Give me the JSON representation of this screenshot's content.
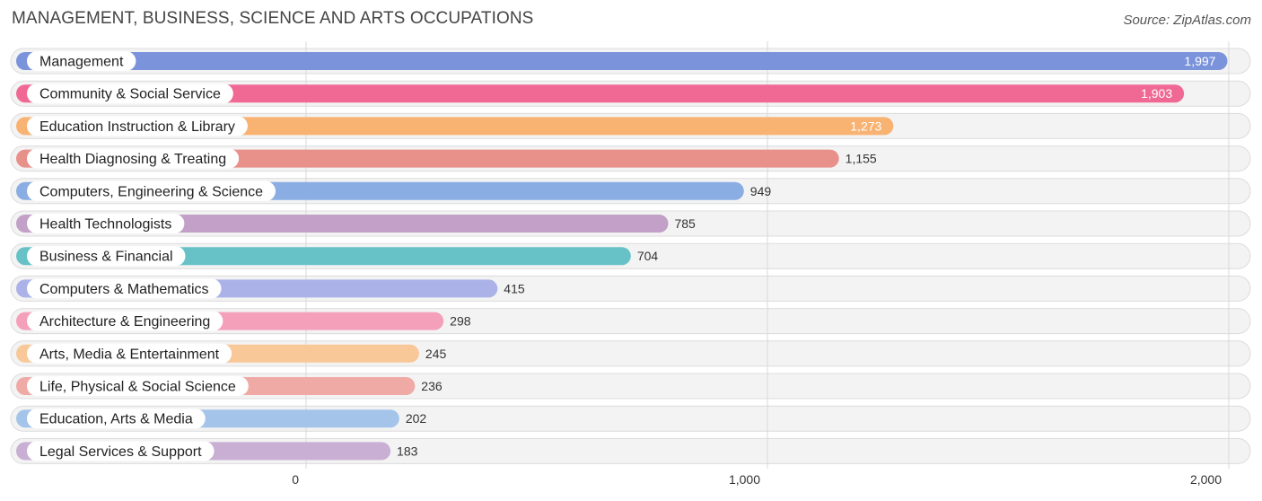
{
  "header": {
    "title": "MANAGEMENT, BUSINESS, SCIENCE AND ARTS OCCUPATIONS",
    "source": "Source: ZipAtlas.com"
  },
  "chart_data": {
    "type": "bar",
    "orientation": "horizontal",
    "title": "MANAGEMENT, BUSINESS, SCIENCE AND ARTS OCCUPATIONS",
    "xlim": [
      0,
      2000
    ],
    "ticks": [
      0,
      1000,
      2000
    ],
    "tick_labels": [
      "0",
      "1,000",
      "2,000"
    ],
    "grid": true,
    "categories": [
      "Management",
      "Community & Social Service",
      "Education Instruction & Library",
      "Health Diagnosing & Treating",
      "Computers, Engineering & Science",
      "Health Technologists",
      "Business & Financial",
      "Computers & Mathematics",
      "Architecture & Engineering",
      "Arts, Media & Entertainment",
      "Life, Physical & Social Science",
      "Education, Arts & Media",
      "Legal Services & Support"
    ],
    "values": [
      1997,
      1903,
      1273,
      1155,
      949,
      785,
      704,
      415,
      298,
      245,
      236,
      202,
      183
    ],
    "value_labels": [
      "1,997",
      "1,903",
      "1,273",
      "1,155",
      "949",
      "785",
      "704",
      "415",
      "298",
      "245",
      "236",
      "202",
      "183"
    ],
    "colors": [
      "#7b93db",
      "#f06894",
      "#f8b373",
      "#e8908a",
      "#8aaee3",
      "#c2a0c8",
      "#67c2c8",
      "#aab2e8",
      "#f5a0bb",
      "#f8c898",
      "#efaaa6",
      "#a4c4ea",
      "#c9afd4"
    ]
  }
}
